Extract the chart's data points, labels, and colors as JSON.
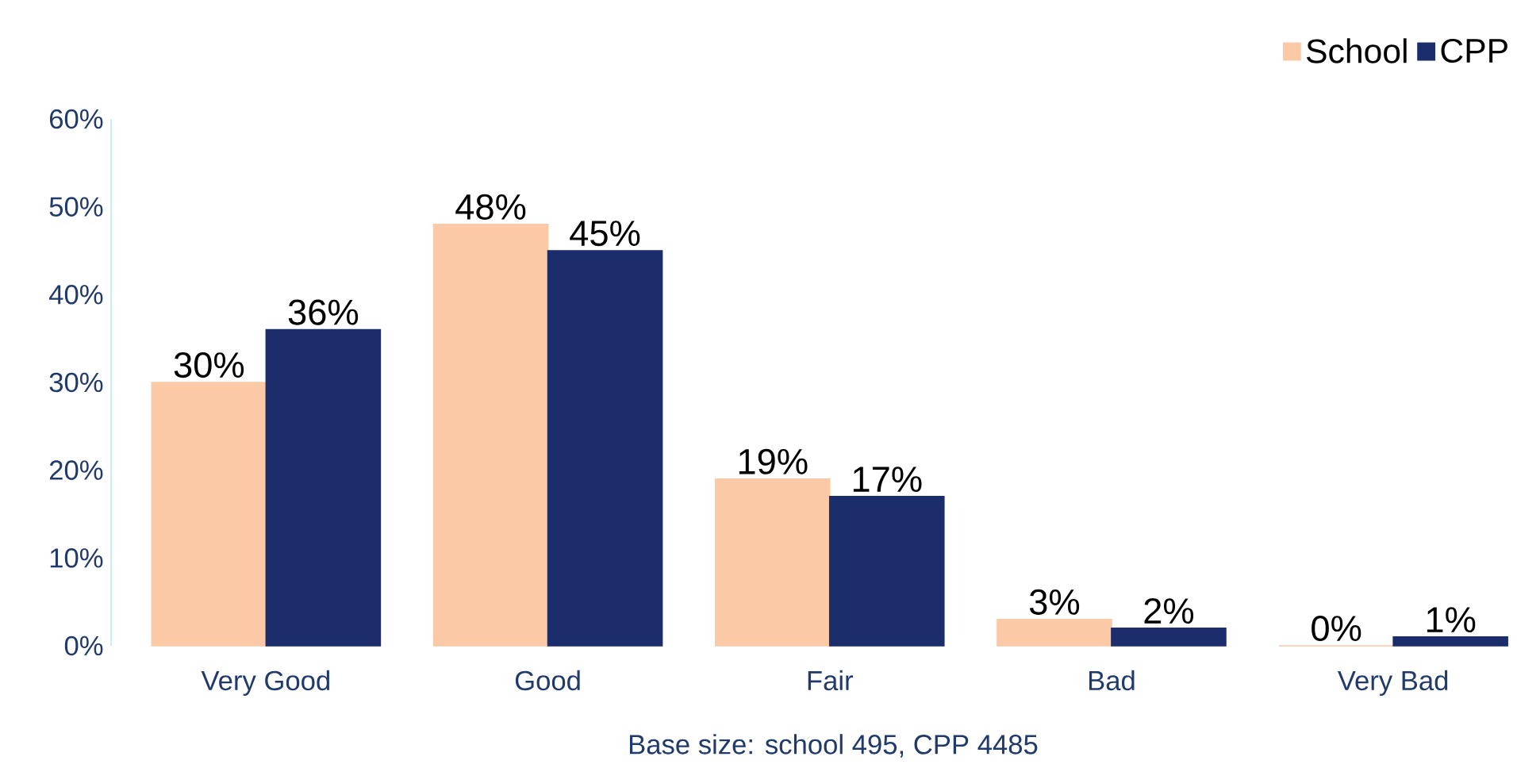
{
  "chart_data": {
    "type": "bar",
    "categories": [
      "Very Good",
      "Good",
      "Fair",
      "Bad",
      "Very Bad"
    ],
    "series": [
      {
        "name": "School",
        "color": "#fcc9a6",
        "values": [
          30,
          48,
          19,
          3,
          0
        ],
        "value_labels": [
          "30%",
          "48%",
          "19%",
          "3%",
          "0%"
        ]
      },
      {
        "name": "CPP",
        "color": "#1c2d6b",
        "values": [
          36,
          45,
          17,
          2,
          1
        ],
        "value_labels": [
          "36%",
          "45%",
          "17%",
          "2%",
          "1%"
        ]
      }
    ],
    "ylim": [
      0,
      60
    ],
    "yticks": [
      {
        "value": 0,
        "label": "0%"
      },
      {
        "value": 10,
        "label": "10%"
      },
      {
        "value": 20,
        "label": "20%"
      },
      {
        "value": 30,
        "label": "30%"
      },
      {
        "value": 40,
        "label": "40%"
      },
      {
        "value": 50,
        "label": "50%"
      },
      {
        "value": 60,
        "label": "60%"
      }
    ],
    "grid": false,
    "legend": "top right",
    "annotations": [
      "Base size: school 495, CPP 4485"
    ]
  }
}
